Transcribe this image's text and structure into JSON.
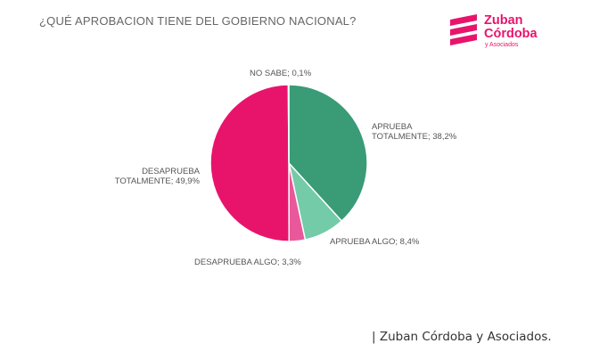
{
  "title": "¿QUÉ APROBACION TIENE DEL GOBIERNO NACIONAL?",
  "logo": {
    "line1": "Zuban",
    "line2": "Córdoba",
    "line3": "y Asociados",
    "color": "#e8146c"
  },
  "caption": "| Zuban Córdoba y Asociados.",
  "chart_data": {
    "type": "pie",
    "title": "¿QUÉ APROBACION TIENE DEL GOBIERNO NACIONAL?",
    "slices": [
      {
        "label": "APRUEBA TOTALMENTE; 38,2%",
        "line1": "APRUEBA",
        "line2": "TOTALMENTE; 38,2%",
        "value": 38.2,
        "color": "#3a9b77"
      },
      {
        "label": "APRUEBA ALGO; 8,4%",
        "line1": "APRUEBA ALGO; 8,4%",
        "line2": "",
        "value": 8.4,
        "color": "#74cba8"
      },
      {
        "label": "DESAPRUEBA ALGO; 3,3%",
        "line1": "DESAPRUEBA ALGO; 3,3%",
        "line2": "",
        "value": 3.3,
        "color": "#e9589a"
      },
      {
        "label": "DESAPRUEBA TOTALMENTE; 49,9%",
        "line1": "DESAPRUEBA",
        "line2": "TOTALMENTE; 49,9%",
        "value": 49.9,
        "color": "#e8146c"
      },
      {
        "label": "NO SABE; 0,1%",
        "line1": "NO SABE; 0,1%",
        "line2": "",
        "value": 0.1,
        "color": "#bbbbbb"
      }
    ]
  }
}
